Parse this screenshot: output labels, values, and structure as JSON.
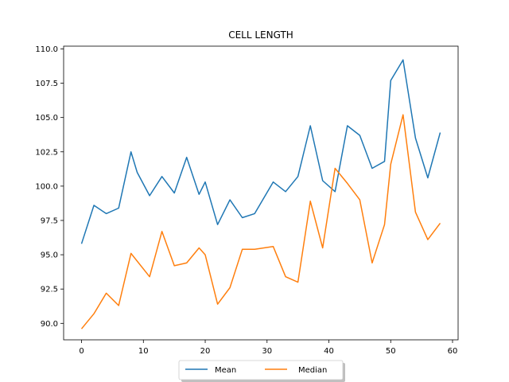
{
  "chart_data": {
    "type": "line",
    "title": "CELL LENGTH",
    "xlabel": "",
    "ylabel": "",
    "xlim": [
      -2.9,
      60.9
    ],
    "ylim": [
      88.8,
      110.2
    ],
    "xticks": [
      0,
      10,
      20,
      30,
      40,
      50,
      60
    ],
    "yticks": [
      90.0,
      92.5,
      95.0,
      97.5,
      100.0,
      102.5,
      105.0,
      107.5,
      110.0
    ],
    "grid": false,
    "legend_position": "bottom-center",
    "series": [
      {
        "name": "Mean",
        "color": "#1f77b4",
        "x": [
          0,
          2,
          4,
          6,
          8,
          9,
          11,
          13,
          15,
          17,
          19,
          20,
          22,
          24,
          26,
          28,
          31,
          33,
          35,
          37,
          39,
          41,
          43,
          45,
          47,
          49,
          50,
          52,
          54,
          56,
          58
        ],
        "y": [
          95.8,
          98.6,
          98.0,
          98.4,
          102.5,
          101.0,
          99.3,
          100.7,
          99.5,
          102.1,
          99.4,
          100.3,
          97.2,
          99.0,
          97.7,
          98.0,
          100.3,
          99.6,
          100.7,
          104.4,
          100.4,
          99.6,
          104.4,
          103.7,
          101.3,
          101.8,
          107.7,
          109.2,
          103.5,
          100.6,
          103.9
        ]
      },
      {
        "name": "Median",
        "color": "#ff7f0e",
        "x": [
          0,
          2,
          4,
          6,
          8,
          11,
          13,
          15,
          17,
          19,
          20,
          22,
          24,
          26,
          28,
          31,
          33,
          35,
          37,
          39,
          41,
          43,
          45,
          47,
          49,
          50,
          52,
          54,
          56,
          58
        ],
        "y": [
          89.6,
          90.7,
          92.2,
          91.3,
          95.1,
          93.4,
          96.7,
          94.2,
          94.4,
          95.5,
          95.0,
          91.4,
          92.6,
          95.4,
          95.4,
          95.6,
          93.4,
          93.0,
          98.9,
          95.5,
          101.3,
          100.2,
          99.0,
          94.4,
          97.2,
          101.6,
          105.2,
          98.1,
          96.1,
          97.3
        ]
      }
    ]
  }
}
